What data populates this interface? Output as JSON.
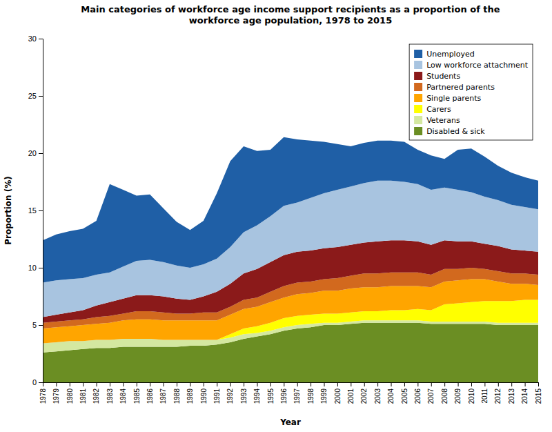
{
  "chart_data": {
    "type": "area",
    "stacked": true,
    "title": "Main categories of workforce age income support recipients as a proportion of the\nworkforce age population, 1978 to 2015",
    "x_label": "Year",
    "y_label": "Proportion (%)",
    "x": [
      1978,
      1979,
      1980,
      1981,
      1982,
      1983,
      1984,
      1985,
      1986,
      1987,
      1988,
      1989,
      1990,
      1991,
      1992,
      1993,
      1994,
      1995,
      1996,
      1997,
      1998,
      1999,
      2000,
      2001,
      2002,
      2003,
      2004,
      2005,
      2006,
      2007,
      2008,
      2009,
      2010,
      2011,
      2012,
      2013,
      2014,
      2015
    ],
    "xlim": [
      1978,
      2015
    ],
    "xticks": [
      1978,
      1979,
      1980,
      1981,
      1982,
      1983,
      1984,
      1985,
      1986,
      1987,
      1988,
      1989,
      1990,
      1991,
      1992,
      1993,
      1994,
      1995,
      1996,
      1997,
      1998,
      1999,
      2000,
      2001,
      2002,
      2003,
      2004,
      2005,
      2006,
      2007,
      2008,
      2009,
      2010,
      2011,
      2012,
      2013,
      2014,
      2015
    ],
    "ylim": [
      0,
      30
    ],
    "yticks": [
      0,
      5,
      10,
      15,
      20,
      25,
      30
    ],
    "grid": false,
    "legend": "upper right",
    "series": [
      {
        "name": "Disabled & sick",
        "color": "#6b8e23",
        "values": [
          2.6,
          2.7,
          2.8,
          2.9,
          3.0,
          3.0,
          3.1,
          3.1,
          3.1,
          3.1,
          3.1,
          3.2,
          3.2,
          3.3,
          3.5,
          3.8,
          4.0,
          4.2,
          4.5,
          4.7,
          4.8,
          5.0,
          5.0,
          5.1,
          5.2,
          5.2,
          5.2,
          5.2,
          5.2,
          5.1,
          5.1,
          5.1,
          5.1,
          5.1,
          5.0,
          5.0,
          5.0,
          5.0
        ]
      },
      {
        "name": "Veterans",
        "color": "#d4e8a0",
        "values": [
          0.8,
          0.8,
          0.8,
          0.7,
          0.7,
          0.7,
          0.7,
          0.7,
          0.7,
          0.6,
          0.6,
          0.5,
          0.5,
          0.4,
          0.4,
          0.4,
          0.3,
          0.3,
          0.3,
          0.3,
          0.3,
          0.2,
          0.2,
          0.2,
          0.2,
          0.2,
          0.2,
          0.2,
          0.2,
          0.2,
          0.2,
          0.2,
          0.2,
          0.2,
          0.2,
          0.2,
          0.2,
          0.2
        ]
      },
      {
        "name": "Carers",
        "color": "#ffff00",
        "values": [
          0.0,
          0.0,
          0.0,
          0.0,
          0.0,
          0.0,
          0.0,
          0.0,
          0.0,
          0.0,
          0.0,
          0.0,
          0.0,
          0.0,
          0.3,
          0.5,
          0.6,
          0.7,
          0.8,
          0.8,
          0.8,
          0.8,
          0.8,
          0.8,
          0.8,
          0.8,
          0.9,
          0.9,
          1.0,
          1.0,
          1.5,
          1.6,
          1.7,
          1.8,
          1.9,
          1.9,
          2.0,
          2.0
        ]
      },
      {
        "name": "Single parents",
        "color": "#ffa500",
        "values": [
          1.3,
          1.3,
          1.3,
          1.4,
          1.4,
          1.5,
          1.6,
          1.7,
          1.7,
          1.7,
          1.7,
          1.7,
          1.7,
          1.7,
          1.7,
          1.7,
          1.7,
          1.8,
          1.8,
          1.9,
          1.9,
          2.0,
          2.0,
          2.1,
          2.1,
          2.1,
          2.1,
          2.1,
          2.0,
          2.0,
          2.0,
          2.0,
          2.0,
          1.9,
          1.7,
          1.5,
          1.4,
          1.3
        ]
      },
      {
        "name": "Partnered parents",
        "color": "#d2691e",
        "values": [
          0.5,
          0.5,
          0.5,
          0.5,
          0.6,
          0.6,
          0.6,
          0.7,
          0.7,
          0.7,
          0.6,
          0.6,
          0.7,
          0.7,
          0.7,
          0.8,
          0.8,
          0.9,
          1.0,
          1.0,
          1.0,
          1.0,
          1.1,
          1.1,
          1.2,
          1.2,
          1.2,
          1.2,
          1.2,
          1.1,
          1.1,
          1.0,
          1.0,
          0.9,
          0.9,
          0.9,
          0.9,
          0.9
        ]
      },
      {
        "name": "Students",
        "color": "#8b1a1a",
        "values": [
          0.5,
          0.6,
          0.7,
          0.8,
          1.0,
          1.2,
          1.3,
          1.4,
          1.4,
          1.4,
          1.3,
          1.2,
          1.4,
          1.8,
          2.0,
          2.3,
          2.5,
          2.6,
          2.7,
          2.7,
          2.7,
          2.7,
          2.7,
          2.7,
          2.7,
          2.8,
          2.8,
          2.8,
          2.7,
          2.6,
          2.5,
          2.4,
          2.3,
          2.2,
          2.2,
          2.1,
          2.0,
          2.0
        ]
      },
      {
        "name": "Low workforce attachment",
        "color": "#a8c4e0",
        "values": [
          3.0,
          3.0,
          2.9,
          2.8,
          2.7,
          2.6,
          2.8,
          3.0,
          3.1,
          3.0,
          2.9,
          2.8,
          2.8,
          2.9,
          3.2,
          3.6,
          3.8,
          4.0,
          4.3,
          4.3,
          4.6,
          4.8,
          5.0,
          5.1,
          5.2,
          5.3,
          5.2,
          5.1,
          5.0,
          4.8,
          4.6,
          4.5,
          4.3,
          4.1,
          4.0,
          3.9,
          3.8,
          3.7
        ]
      },
      {
        "name": "Unemployed",
        "color": "#1f5fa6",
        "values": [
          3.7,
          4.0,
          4.2,
          4.3,
          4.7,
          7.7,
          6.7,
          5.7,
          5.7,
          4.7,
          3.8,
          3.3,
          3.8,
          5.7,
          7.5,
          7.5,
          6.5,
          5.8,
          6.0,
          5.5,
          5.0,
          4.5,
          4.0,
          3.5,
          3.5,
          3.5,
          3.5,
          3.5,
          3.0,
          3.0,
          2.5,
          3.5,
          3.8,
          3.5,
          3.0,
          2.8,
          2.6,
          2.5
        ]
      }
    ]
  }
}
